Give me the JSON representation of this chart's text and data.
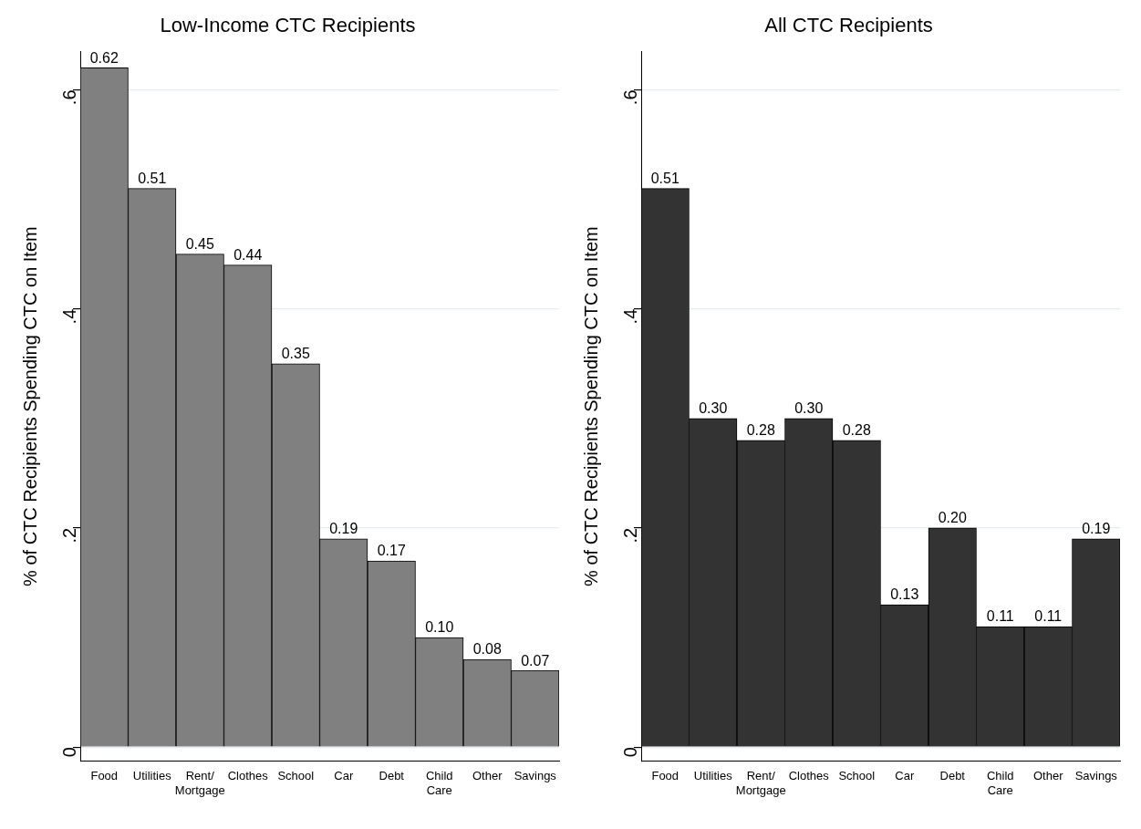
{
  "chart_data": [
    {
      "type": "bar",
      "title": "Low-Income CTC Recipients",
      "ylabel": "% of CTC Recipients Spending CTC on Item",
      "categories": [
        "Food",
        "Utilities",
        "Rent/\nMortgage",
        "Clothes",
        "School",
        "Car",
        "Debt",
        "Child\nCare",
        "Other",
        "Savings"
      ],
      "series": [
        {
          "color": "#808080",
          "values": [
            0.62,
            0.51,
            0.45,
            0.44,
            0.35,
            0.19,
            0.17,
            0.1,
            0.08,
            0.07
          ],
          "value_labels": [
            "0.62",
            "0.51",
            "0.45",
            "0.44",
            "0.35",
            "0.19",
            "0.17",
            "0.10",
            "0.08",
            "0.07"
          ]
        }
      ],
      "ylim": [
        -0.013,
        0.635
      ],
      "yticks": [
        0,
        {
          "value": 0.2,
          "label": ".2"
        },
        {
          "value": 0.4,
          "label": ".4"
        },
        {
          "value": 0.6,
          "label": ".6"
        }
      ],
      "grid": "y",
      "legend": false
    },
    {
      "type": "bar",
      "title": "All CTC Recipients",
      "ylabel": "% of CTC Recipients Spending CTC on Item",
      "categories": [
        "Food",
        "Utilities",
        "Rent/\nMortgage",
        "Clothes",
        "School",
        "Car",
        "Debt",
        "Child\nCare",
        "Other",
        "Savings"
      ],
      "series": [
        {
          "color": "#333333",
          "values": [
            0.51,
            0.3,
            0.28,
            0.3,
            0.28,
            0.13,
            0.2,
            0.11,
            0.11,
            0.19
          ],
          "value_labels": [
            "0.51",
            "0.30",
            "0.28",
            "0.30",
            "0.28",
            "0.13",
            "0.20",
            "0.11",
            "0.11",
            "0.19"
          ]
        }
      ],
      "ylim": [
        -0.013,
        0.635
      ],
      "yticks": [
        0,
        {
          "value": 0.2,
          "label": ".2"
        },
        {
          "value": 0.4,
          "label": ".4"
        },
        {
          "value": 0.6,
          "label": ".6"
        }
      ],
      "grid": "y",
      "legend": false
    }
  ]
}
